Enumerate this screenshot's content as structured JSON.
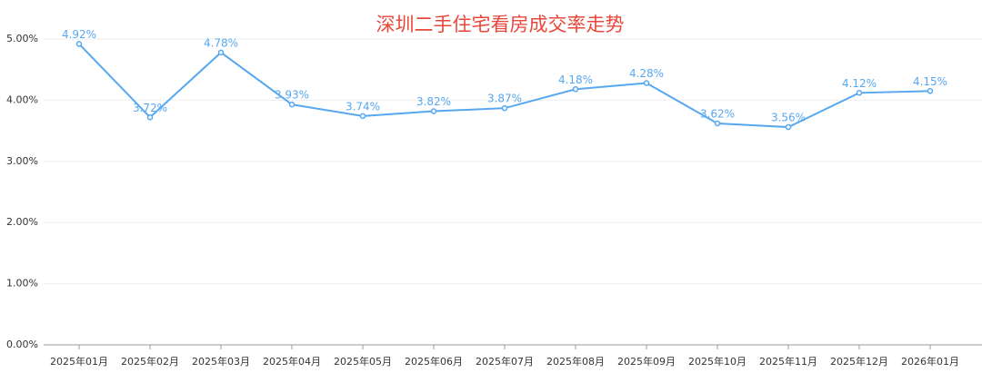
{
  "chart_data": {
    "type": "line",
    "title": "深圳二手住宅看房成交率走势",
    "categories": [
      "2025年01月",
      "2025年02月",
      "2025年03月",
      "2025年04月",
      "2025年05月",
      "2025年06月",
      "2025年07月",
      "2025年08月",
      "2025年09月",
      "2025年10月",
      "2025年11月",
      "2025年12月",
      "2026年01月"
    ],
    "values": [
      4.92,
      3.72,
      4.78,
      3.93,
      3.74,
      3.82,
      3.87,
      4.18,
      4.28,
      3.62,
      3.56,
      4.12,
      4.15
    ],
    "value_labels": [
      "4.92%",
      "3.72%",
      "4.78%",
      "3.93%",
      "3.74%",
      "3.82%",
      "3.87%",
      "4.18%",
      "4.28%",
      "3.62%",
      "3.56%",
      "4.12%",
      "4.15%"
    ],
    "color": "#58a8f0",
    "ylim": [
      0,
      5
    ],
    "yticks": [
      {
        "value": 0,
        "label": "0.00%"
      },
      {
        "value": 1,
        "label": "1.00%"
      },
      {
        "value": 2,
        "label": "2.00%"
      },
      {
        "value": 3,
        "label": "3.00%"
      },
      {
        "value": 4,
        "label": "4.00%"
      },
      {
        "value": 5,
        "label": "5.00%"
      }
    ],
    "grid": true
  }
}
